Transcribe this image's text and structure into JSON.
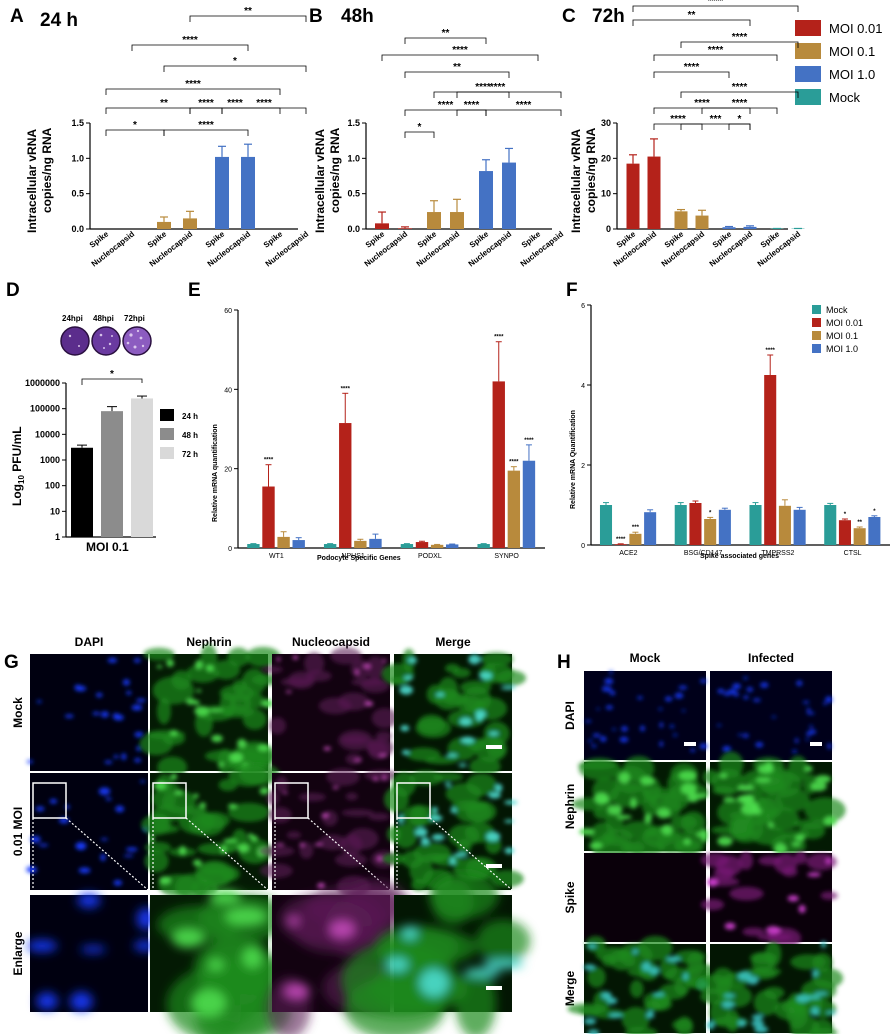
{
  "panel_labels": {
    "A": "A",
    "B": "B",
    "C": "C",
    "D": "D",
    "E": "E",
    "F": "F",
    "G": "G",
    "H": "H"
  },
  "legend_abc": [
    {
      "name": "MOI 0.01",
      "color": "#b4221a"
    },
    {
      "name": "MOI 0.1",
      "color": "#b88a3c"
    },
    {
      "name": "MOI 1.0",
      "color": "#4472c4"
    },
    {
      "name": "Mock",
      "color": "#2a9d98"
    }
  ],
  "chart_data": [
    {
      "id": "A",
      "type": "bar",
      "title": "24 h",
      "ylabel": "Intracellular vRNA copies/ng RNA",
      "ylim": [
        0,
        1.5
      ],
      "yticks": [
        "0.0",
        "0.5",
        "1.0",
        "1.5"
      ],
      "categories": [
        "Spike",
        "Nucleocapsid",
        "Spike",
        "Nucleocapsid",
        "Spike",
        "Nucleocapsid",
        "Spike",
        "Nucleocapsid"
      ],
      "series_order": [
        "MOI 0.01",
        "MOI 0.01",
        "MOI 0.1",
        "MOI 0.1",
        "MOI 1.0",
        "MOI 1.0",
        "Mock",
        "Mock"
      ],
      "values": [
        0,
        0,
        0.1,
        0.15,
        1.02,
        1.02,
        0,
        0
      ],
      "errors": [
        0,
        0,
        0.07,
        0.1,
        0.15,
        0.18,
        0,
        0
      ],
      "significance": [
        "*",
        "**",
        "****",
        "****",
        "****",
        "****",
        "****",
        "*",
        "****",
        "**"
      ]
    },
    {
      "id": "B",
      "type": "bar",
      "title": "48h",
      "ylabel": "Intracellular vRNA copies/ng RNA",
      "ylim": [
        0,
        1.5
      ],
      "yticks": [
        "0.0",
        "0.5",
        "1.0",
        "1.5"
      ],
      "categories": [
        "Spike",
        "Nucleocapsid",
        "Spike",
        "Nucleocapsid",
        "Spike",
        "Nucleocapsid",
        "Spike",
        "Nucleocapsid"
      ],
      "series_order": [
        "MOI 0.01",
        "MOI 0.01",
        "MOI 0.1",
        "MOI 0.1",
        "MOI 1.0",
        "MOI 1.0",
        "Mock",
        "Mock"
      ],
      "values": [
        0.08,
        0.01,
        0.24,
        0.24,
        0.82,
        0.94,
        0,
        0
      ],
      "errors": [
        0.16,
        0.02,
        0.16,
        0.18,
        0.16,
        0.2,
        0,
        0
      ],
      "significance": [
        "*",
        "****",
        "****",
        "****",
        "****",
        "****",
        "**",
        "****",
        "**"
      ]
    },
    {
      "id": "C",
      "type": "bar",
      "title": "72h",
      "ylabel": "Intracellular vRNA copies/ng RNA",
      "ylim": [
        0,
        30
      ],
      "yticks": [
        "0",
        "10",
        "20",
        "30"
      ],
      "categories": [
        "Spike",
        "Nucleocapsid",
        "Spike",
        "Nucleocapsid",
        "Spike",
        "Nucleocapsid",
        "Spike",
        "Nucleocapsid"
      ],
      "series_order": [
        "MOI 0.01",
        "MOI 0.01",
        "MOI 0.1",
        "MOI 0.1",
        "MOI 1.0",
        "MOI 1.0",
        "Mock",
        "Mock"
      ],
      "values": [
        18.5,
        20.5,
        5,
        3.8,
        0.5,
        0.6,
        0.1,
        0.1
      ],
      "errors": [
        2.5,
        5,
        0.5,
        1.5,
        0.2,
        0.3,
        0.05,
        0.05
      ],
      "significance": [
        "****",
        "***",
        "*",
        "****",
        "****",
        "****",
        "****",
        "****",
        "****",
        "**",
        "****"
      ]
    },
    {
      "id": "D",
      "type": "bar",
      "xlabel": "MOI 0.1",
      "ylabel": "Log10 PFU/mL",
      "yscale": "log",
      "ylim": [
        1,
        1000000
      ],
      "yticks": [
        "1",
        "10",
        "100",
        "1000",
        "10000",
        "100000",
        "1000000"
      ],
      "categories": [
        "24 h",
        "48 h",
        "72 h"
      ],
      "colors": [
        "#000000",
        "#8c8c8c",
        "#d9d9d9"
      ],
      "values": [
        3000,
        80000,
        250000
      ],
      "errors": [
        800,
        40000,
        60000
      ],
      "plaque_labels": [
        "24hpi",
        "48hpi",
        "72hpi"
      ],
      "significance": [
        "*"
      ]
    },
    {
      "id": "E",
      "type": "bar",
      "xlabel": "Podocyte Specific Genes",
      "ylabel": "Relative mRNA quantification",
      "ylim": [
        0,
        60
      ],
      "yticks": [
        "0",
        "20",
        "40",
        "60"
      ],
      "categories": [
        "WT1",
        "NPHS1",
        "PODXL",
        "SYNPO"
      ],
      "series": [
        {
          "name": "Mock",
          "color": "#2a9d98",
          "values": [
            1,
            1,
            1,
            1
          ],
          "errors": [
            0.1,
            0.1,
            0.1,
            0.1
          ]
        },
        {
          "name": "MOI 0.01",
          "color": "#b4221a",
          "values": [
            15.5,
            31.5,
            1.5,
            42
          ],
          "errors": [
            5.5,
            7.5,
            0.2,
            10
          ]
        },
        {
          "name": "MOI 0.1",
          "color": "#b88a3c",
          "values": [
            2.8,
            1.8,
            0.8,
            19.5
          ],
          "errors": [
            1.3,
            0.4,
            0.1,
            1
          ]
        },
        {
          "name": "MOI 1.0",
          "color": "#4472c4",
          "values": [
            2,
            2.3,
            0.9,
            22
          ],
          "errors": [
            0.6,
            1.2,
            0.1,
            4
          ]
        }
      ],
      "significance": [
        "****",
        "****",
        "****",
        "****",
        "****"
      ]
    },
    {
      "id": "F",
      "type": "bar",
      "xlabel": "Spike associated genes",
      "ylabel": "Relative mRNA Quantification",
      "ylim": [
        0,
        6
      ],
      "yticks": [
        "0",
        "2",
        "4",
        "6"
      ],
      "categories": [
        "ACE2",
        "BSG/CD147",
        "TMPRSS2",
        "CTSL"
      ],
      "series": [
        {
          "name": "Mock",
          "color": "#2a9d98",
          "values": [
            1,
            1,
            1,
            1
          ],
          "errors": [
            0.06,
            0.06,
            0.06,
            0.04
          ]
        },
        {
          "name": "MOI 0.01",
          "color": "#b4221a",
          "values": [
            0.02,
            1.05,
            4.25,
            0.62
          ],
          "errors": [
            0.01,
            0.05,
            0.5,
            0.03
          ]
        },
        {
          "name": "MOI 0.1",
          "color": "#b88a3c",
          "values": [
            0.28,
            0.65,
            0.98,
            0.42
          ],
          "errors": [
            0.04,
            0.04,
            0.15,
            0.03
          ]
        },
        {
          "name": "MOI 1.0",
          "color": "#4472c4",
          "values": [
            0.82,
            0.88,
            0.88,
            0.7
          ],
          "errors": [
            0.06,
            0.04,
            0.06,
            0.03
          ]
        }
      ],
      "significance": [
        "****",
        "***",
        "*",
        "****",
        "*",
        "**",
        "*"
      ]
    }
  ],
  "panel_G": {
    "columns": [
      "DAPI",
      "Nephrin",
      "Nucleocapsid",
      "Merge"
    ],
    "rows": [
      "Mock",
      "0.01 MOI",
      "Enlarge"
    ]
  },
  "panel_H": {
    "columns": [
      "Mock",
      "Infected"
    ],
    "rows": [
      "DAPI",
      "Nephrin",
      "Spike",
      "Merge"
    ]
  }
}
